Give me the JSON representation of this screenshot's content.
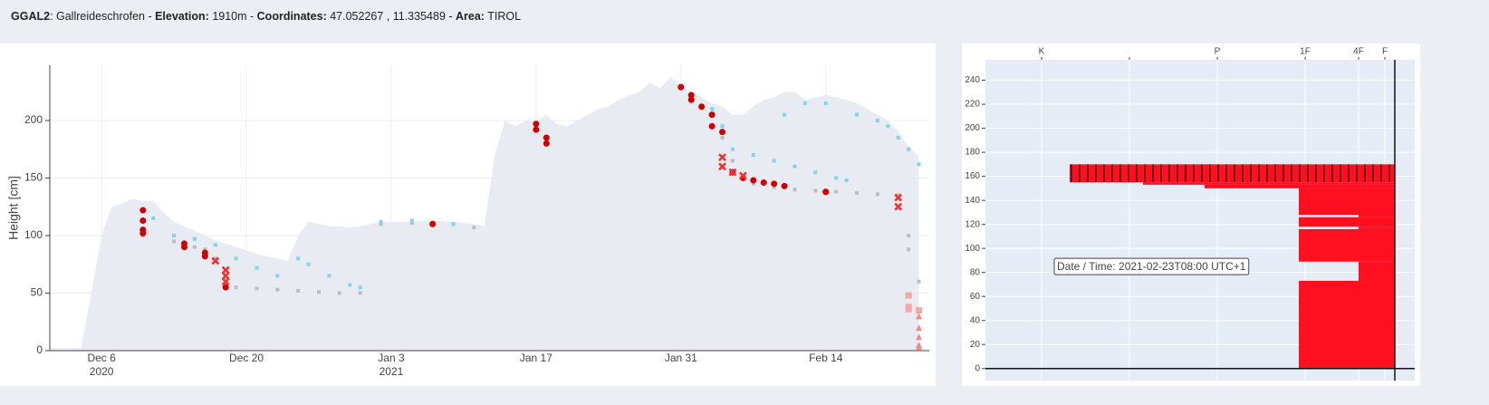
{
  "header": {
    "parts": [
      {
        "bold": "GGAL2",
        "text": ": Gallreideschrofen - "
      },
      {
        "bold": "Elevation:",
        "text": " 1910m - "
      },
      {
        "bold": "Coordinates:",
        "text": " 47.052267 , 11.335489 - "
      },
      {
        "bold": "Area:",
        "text": " TIROL"
      }
    ]
  },
  "chart_data": [
    {
      "type": "scatter",
      "y_label": "Height [cm]",
      "grid": true,
      "xlim": [
        "2020-12-01",
        "2021-02-24"
      ],
      "ylim": [
        0,
        248
      ],
      "xticks": [
        {
          "value": "2020-12-06",
          "label": "Dec 6",
          "label2": "2020"
        },
        {
          "value": "2020-12-20",
          "label": "Dec 20"
        },
        {
          "value": "2021-01-03",
          "label": "Jan 3",
          "label2": "2021"
        },
        {
          "value": "2021-01-17",
          "label": "Jan 17"
        },
        {
          "value": "2021-01-31",
          "label": "Jan 31"
        },
        {
          "value": "2021-02-14",
          "label": "Feb 14"
        }
      ],
      "yticks": [
        0,
        50,
        100,
        150,
        200
      ],
      "area": {
        "color": "#e8ebf2",
        "x": [
          "2020-12-01",
          "2020-12-04",
          "2020-12-05",
          "2020-12-06",
          "2020-12-07",
          "2020-12-08",
          "2020-12-09",
          "2020-12-10",
          "2020-12-11",
          "2020-12-12",
          "2020-12-13",
          "2020-12-14",
          "2020-12-15",
          "2020-12-16",
          "2020-12-17",
          "2020-12-18",
          "2020-12-19",
          "2020-12-20",
          "2020-12-21",
          "2020-12-22",
          "2020-12-23",
          "2020-12-24",
          "2020-12-25",
          "2020-12-26",
          "2020-12-27",
          "2020-12-28",
          "2020-12-29",
          "2020-12-30",
          "2020-12-31",
          "2021-01-01",
          "2021-01-02",
          "2021-01-03",
          "2021-01-05",
          "2021-01-07",
          "2021-01-09",
          "2021-01-11",
          "2021-01-12",
          "2021-01-13",
          "2021-01-14",
          "2021-01-15",
          "2021-01-16",
          "2021-01-17",
          "2021-01-18",
          "2021-01-19",
          "2021-01-20",
          "2021-01-21",
          "2021-01-22",
          "2021-01-23",
          "2021-01-24",
          "2021-01-25",
          "2021-01-26",
          "2021-01-27",
          "2021-01-28",
          "2021-01-29",
          "2021-01-30",
          "2021-01-31",
          "2021-02-01",
          "2021-02-02",
          "2021-02-03",
          "2021-02-04",
          "2021-02-05",
          "2021-02-06",
          "2021-02-07",
          "2021-02-08",
          "2021-02-09",
          "2021-02-10",
          "2021-02-11",
          "2021-02-12",
          "2021-02-13",
          "2021-02-14",
          "2021-02-15",
          "2021-02-16",
          "2021-02-17",
          "2021-02-18",
          "2021-02-19",
          "2021-02-20",
          "2021-02-21",
          "2021-02-22",
          "2021-02-23"
        ],
        "values": [
          2,
          2,
          50,
          100,
          125,
          128,
          132,
          130,
          130,
          120,
          112,
          108,
          104,
          100,
          96,
          93,
          90,
          87,
          84,
          82,
          80,
          78,
          100,
          112,
          110,
          108,
          108,
          107,
          108,
          110,
          112,
          112,
          112,
          113,
          112,
          110,
          108,
          170,
          200,
          195,
          200,
          198,
          205,
          197,
          195,
          200,
          205,
          210,
          212,
          218,
          222,
          225,
          233,
          228,
          238,
          230,
          225,
          220,
          215,
          212,
          205,
          205,
          212,
          218,
          220,
          225,
          225,
          218,
          220,
          222,
          220,
          218,
          215,
          210,
          205,
          200,
          190,
          178,
          168
        ]
      },
      "series": [
        {
          "color": "#bdbdbd",
          "marker": "square",
          "size": 4,
          "x": [
            "2020-12-10",
            "2020-12-13",
            "2020-12-14",
            "2020-12-15",
            "2020-12-16",
            "2020-12-17",
            "2020-12-19",
            "2020-12-21",
            "2020-12-23",
            "2020-12-25",
            "2020-12-27",
            "2020-12-29",
            "2020-12-31",
            "2021-01-02",
            "2021-01-05",
            "2021-01-09",
            "2021-01-11",
            "2021-02-01",
            "2021-02-03",
            "2021-02-04",
            "2021-02-05",
            "2021-02-07",
            "2021-02-09",
            "2021-02-11",
            "2021-02-13",
            "2021-02-15",
            "2021-02-17",
            "2021-02-19",
            "2021-02-21",
            "2021-02-22",
            "2021-02-22",
            "2021-02-23"
          ],
          "values": [
            100,
            95,
            93,
            90,
            88,
            80,
            55,
            54,
            53,
            52,
            51,
            50,
            50,
            110,
            111,
            110,
            107,
            222,
            205,
            185,
            165,
            145,
            142,
            140,
            139,
            138,
            137,
            136,
            135,
            100,
            88,
            60
          ]
        },
        {
          "color": "#7fd3ea",
          "marker": "square",
          "size": 4,
          "x": [
            "2020-12-11",
            "2020-12-13",
            "2020-12-15",
            "2020-12-17",
            "2020-12-19",
            "2020-12-21",
            "2020-12-23",
            "2020-12-25",
            "2020-12-26",
            "2020-12-28",
            "2020-12-30",
            "2020-12-31",
            "2021-01-02",
            "2021-01-05",
            "2021-01-09",
            "2021-02-01",
            "2021-02-03",
            "2021-02-04",
            "2021-02-05",
            "2021-02-07",
            "2021-02-09",
            "2021-02-11",
            "2021-02-13",
            "2021-02-15",
            "2021-02-16",
            "2021-02-10",
            "2021-02-12",
            "2021-02-14",
            "2021-02-17",
            "2021-02-19",
            "2021-02-20",
            "2021-02-21",
            "2021-02-22",
            "2021-02-23"
          ],
          "values": [
            115,
            100,
            97,
            92,
            80,
            72,
            65,
            80,
            75,
            65,
            57,
            55,
            112,
            113,
            110,
            218,
            210,
            195,
            175,
            170,
            165,
            160,
            155,
            150,
            148,
            205,
            215,
            215,
            205,
            200,
            195,
            185,
            175,
            162
          ]
        },
        {
          "color": "#cc0000",
          "marker": "circle",
          "size": 7,
          "x": [
            "2020-12-10",
            "2020-12-10",
            "2020-12-10",
            "2020-12-10",
            "2020-12-14",
            "2020-12-14",
            "2020-12-16",
            "2020-12-16",
            "2020-12-18",
            "2021-01-07",
            "2021-01-17",
            "2021-01-17",
            "2021-01-18",
            "2021-01-18",
            "2021-01-31",
            "2021-02-01",
            "2021-02-01",
            "2021-02-02",
            "2021-02-03",
            "2021-02-03",
            "2021-02-04",
            "2021-02-05",
            "2021-02-06",
            "2021-02-07",
            "2021-02-08",
            "2021-02-09",
            "2021-02-10",
            "2021-02-14",
            "2021-02-14"
          ],
          "values": [
            122,
            113,
            105,
            102,
            93,
            90,
            85,
            82,
            55,
            110,
            197,
            192,
            185,
            180,
            229,
            222,
            218,
            212,
            205,
            195,
            190,
            155,
            150,
            148,
            146,
            145,
            143,
            138,
            138
          ]
        },
        {
          "color": "#ee3333",
          "marker": "x",
          "size": 7,
          "x": [
            "2020-12-17",
            "2020-12-18",
            "2020-12-18",
            "2020-12-18",
            "2021-02-04",
            "2021-02-04",
            "2021-02-05",
            "2021-02-06",
            "2021-02-21",
            "2021-02-21"
          ],
          "values": [
            78,
            70,
            65,
            60,
            168,
            160,
            155,
            152,
            133,
            125
          ]
        },
        {
          "color": "#f6a6a6",
          "marker": "square",
          "size": 7,
          "x": [
            "2021-02-22",
            "2021-02-22",
            "2021-02-22",
            "2021-02-23"
          ],
          "values": [
            48,
            38,
            36,
            35
          ]
        },
        {
          "color": "#f08a8a",
          "marker": "triangle",
          "size": 7,
          "x": [
            "2021-02-23",
            "2021-02-23",
            "2021-02-23",
            "2021-02-23",
            "2021-02-23"
          ],
          "values": [
            30,
            20,
            12,
            5,
            3
          ]
        }
      ]
    },
    {
      "type": "bar",
      "orientation": "horizontal",
      "grid": true,
      "color": "#ff0f1f",
      "annotation": "Date / Time: 2021-02-23T08:00 UTC+1",
      "xlim": [
        452,
        -22
      ],
      "ylim": [
        -10,
        257
      ],
      "xticks": [
        {
          "value": 390,
          "label": "K"
        },
        {
          "value": 293,
          "label": null
        },
        {
          "value": 196,
          "label": "P"
        },
        {
          "value": 99,
          "label": "1F"
        },
        {
          "value": 40,
          "label": "4F"
        },
        {
          "value": 11,
          "label": "F"
        }
      ],
      "yticks": [
        0,
        20,
        40,
        60,
        80,
        100,
        120,
        140,
        160,
        180,
        200,
        220,
        240
      ],
      "layers": [
        {
          "bottom": 155,
          "top": 170,
          "value": 359,
          "hatch": true
        },
        {
          "bottom": 153,
          "top": 155,
          "value": 278
        },
        {
          "bottom": 150,
          "top": 153,
          "value": 210
        },
        {
          "bottom": 128,
          "top": 150,
          "value": 106
        },
        {
          "bottom": 126,
          "top": 128,
          "value": 40
        },
        {
          "bottom": 118,
          "top": 126,
          "value": 106
        },
        {
          "bottom": 116,
          "top": 118,
          "value": 40
        },
        {
          "bottom": 89,
          "top": 116,
          "value": 106
        },
        {
          "bottom": 73,
          "top": 89,
          "value": 40
        },
        {
          "bottom": 0,
          "top": 73,
          "value": 106
        }
      ]
    }
  ]
}
